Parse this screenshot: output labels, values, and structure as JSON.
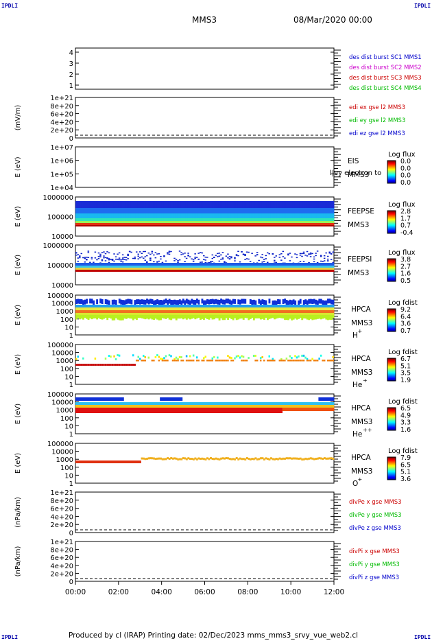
{
  "corners": {
    "tl": "IPDLI",
    "tr": "IPDLI",
    "bl": "IPDLI",
    "br": "IPDLI"
  },
  "header": {
    "title": "MMS3",
    "date": "08/Mar/2020 00:00"
  },
  "footer": "Produced by cl (IRAP)    Printing date: 02/Dec/2023    mms_mms3_srvy_vue_web2.cl",
  "colors": {
    "mms1": "#0000cc",
    "mms2": "#cc00cc",
    "mms3": "#cc0000",
    "mms4": "#00bb00"
  },
  "chart_data": [
    {
      "panel": "burst",
      "type": "line",
      "yticks": [
        "1",
        "2",
        "3",
        "4"
      ],
      "ylabel": "",
      "legend": [
        {
          "text": "des dist burst SC1 MMS1",
          "color": "#0000cc"
        },
        {
          "text": "des dist burst SC2 MMS2",
          "color": "#cc00cc"
        },
        {
          "text": "des dist burst SC3 MMS3",
          "color": "#cc0000"
        },
        {
          "text": "des dist burst SC4 MMS4",
          "color": "#00bb00"
        }
      ]
    },
    {
      "panel": "edi",
      "type": "line",
      "yticks": [
        "0",
        "2e+20",
        "4e+20",
        "6e+20",
        "8e+20",
        "1e+21"
      ],
      "ylabel": "(mV/m)",
      "zero_line": true,
      "legend": [
        {
          "text": "edi ex gse l2 MMS3",
          "color": "#cc0000"
        },
        {
          "text": "edi ey gse l2 MMS3",
          "color": "#00bb00"
        },
        {
          "text": "edi ez gse l2 MMS3",
          "color": "#0000cc"
        }
      ]
    },
    {
      "panel": "eis",
      "type": "heatmap",
      "yticks": [
        "1e+04",
        "1e+05",
        "1e+06",
        "1e+07"
      ],
      "ylabel": "E (eV)",
      "instrument": [
        "EIS",
        "MMS3"
      ],
      "overlay_text": "l|vy electron to",
      "cbar_title": "Log flux",
      "cbar_ticks": [
        "0.0",
        "0.0",
        "0.0",
        "0.0"
      ]
    },
    {
      "panel": "feepse",
      "type": "heatmap",
      "yticks": [
        "10000",
        "100000",
        "1000000"
      ],
      "ylabel": "E (eV)",
      "instrument": [
        "FEEPSE",
        "MMS3"
      ],
      "cbar_title": "Log flux",
      "cbar_ticks": [
        "2.8",
        "1.7",
        "0.7",
        "-0.4"
      ]
    },
    {
      "panel": "feepsi",
      "type": "heatmap",
      "yticks": [
        "10000",
        "100000",
        "1000000"
      ],
      "ylabel": "E (eV)",
      "instrument": [
        "FEEPSI",
        "MMS3"
      ],
      "cbar_title": "Log flux",
      "cbar_ticks": [
        "3.8",
        "2.7",
        "1.6",
        "0.5"
      ]
    },
    {
      "panel": "hpca_h",
      "type": "heatmap",
      "yticks": [
        "1",
        "10",
        "100",
        "1000",
        "10000",
        "100000"
      ],
      "ylabel": "E (eV)",
      "instrument": [
        "HPCA",
        "MMS3"
      ],
      "species": "H",
      "charge": "+",
      "cbar_title": "Log fdist",
      "cbar_ticks": [
        "9.2",
        "6.4",
        "3.6",
        "0.7"
      ]
    },
    {
      "panel": "hpca_he",
      "type": "heatmap",
      "yticks": [
        "1",
        "10",
        "100",
        "1000",
        "10000",
        "100000"
      ],
      "ylabel": "E (eV)",
      "instrument": [
        "HPCA",
        "MMS3"
      ],
      "species": "He",
      "charge": "+",
      "cbar_title": "Log fdist",
      "cbar_ticks": [
        "6.7",
        "5.1",
        "3.5",
        "1.9"
      ]
    },
    {
      "panel": "hpca_hepp",
      "type": "heatmap",
      "yticks": [
        "1",
        "10",
        "100",
        "1000",
        "10000",
        "100000"
      ],
      "ylabel": "E (eV)",
      "instrument": [
        "HPCA",
        "MMS3"
      ],
      "species": "He",
      "charge": "++",
      "cbar_title": "Log fdist",
      "cbar_ticks": [
        "6.5",
        "4.9",
        "3.3",
        "1.6"
      ]
    },
    {
      "panel": "hpca_o",
      "type": "heatmap",
      "yticks": [
        "1",
        "10",
        "100",
        "1000",
        "10000",
        "100000"
      ],
      "ylabel": "E (eV)",
      "instrument": [
        "HPCA",
        "MMS3"
      ],
      "species": "O",
      "charge": "+",
      "cbar_title": "Log fdist",
      "cbar_ticks": [
        "7.9",
        "6.5",
        "5.1",
        "3.6"
      ]
    },
    {
      "panel": "divpe",
      "type": "line",
      "yticks": [
        "0",
        "2e+20",
        "4e+20",
        "6e+20",
        "8e+20",
        "1e+21"
      ],
      "ylabel": "(nPa/km)",
      "zero_line": true,
      "legend": [
        {
          "text": "divPe x gse MMS3",
          "color": "#cc0000"
        },
        {
          "text": "divPe y gse MMS3",
          "color": "#00bb00"
        },
        {
          "text": "divPe z gse MMS3",
          "color": "#0000cc"
        }
      ]
    },
    {
      "panel": "divpi",
      "type": "line",
      "yticks": [
        "0",
        "2e+20",
        "4e+20",
        "6e+20",
        "8e+20",
        "1e+21"
      ],
      "ylabel": "(nPa/km)",
      "zero_line": true,
      "legend": [
        {
          "text": "divPi x gse MMS3",
          "color": "#cc0000"
        },
        {
          "text": "divPi y gse MMS3",
          "color": "#00bb00"
        },
        {
          "text": "divPi z gse MMS3",
          "color": "#0000cc"
        }
      ]
    }
  ],
  "xticks": [
    "00:00",
    "02:00",
    "04:00",
    "06:00",
    "08:00",
    "10:00",
    "12:00"
  ]
}
